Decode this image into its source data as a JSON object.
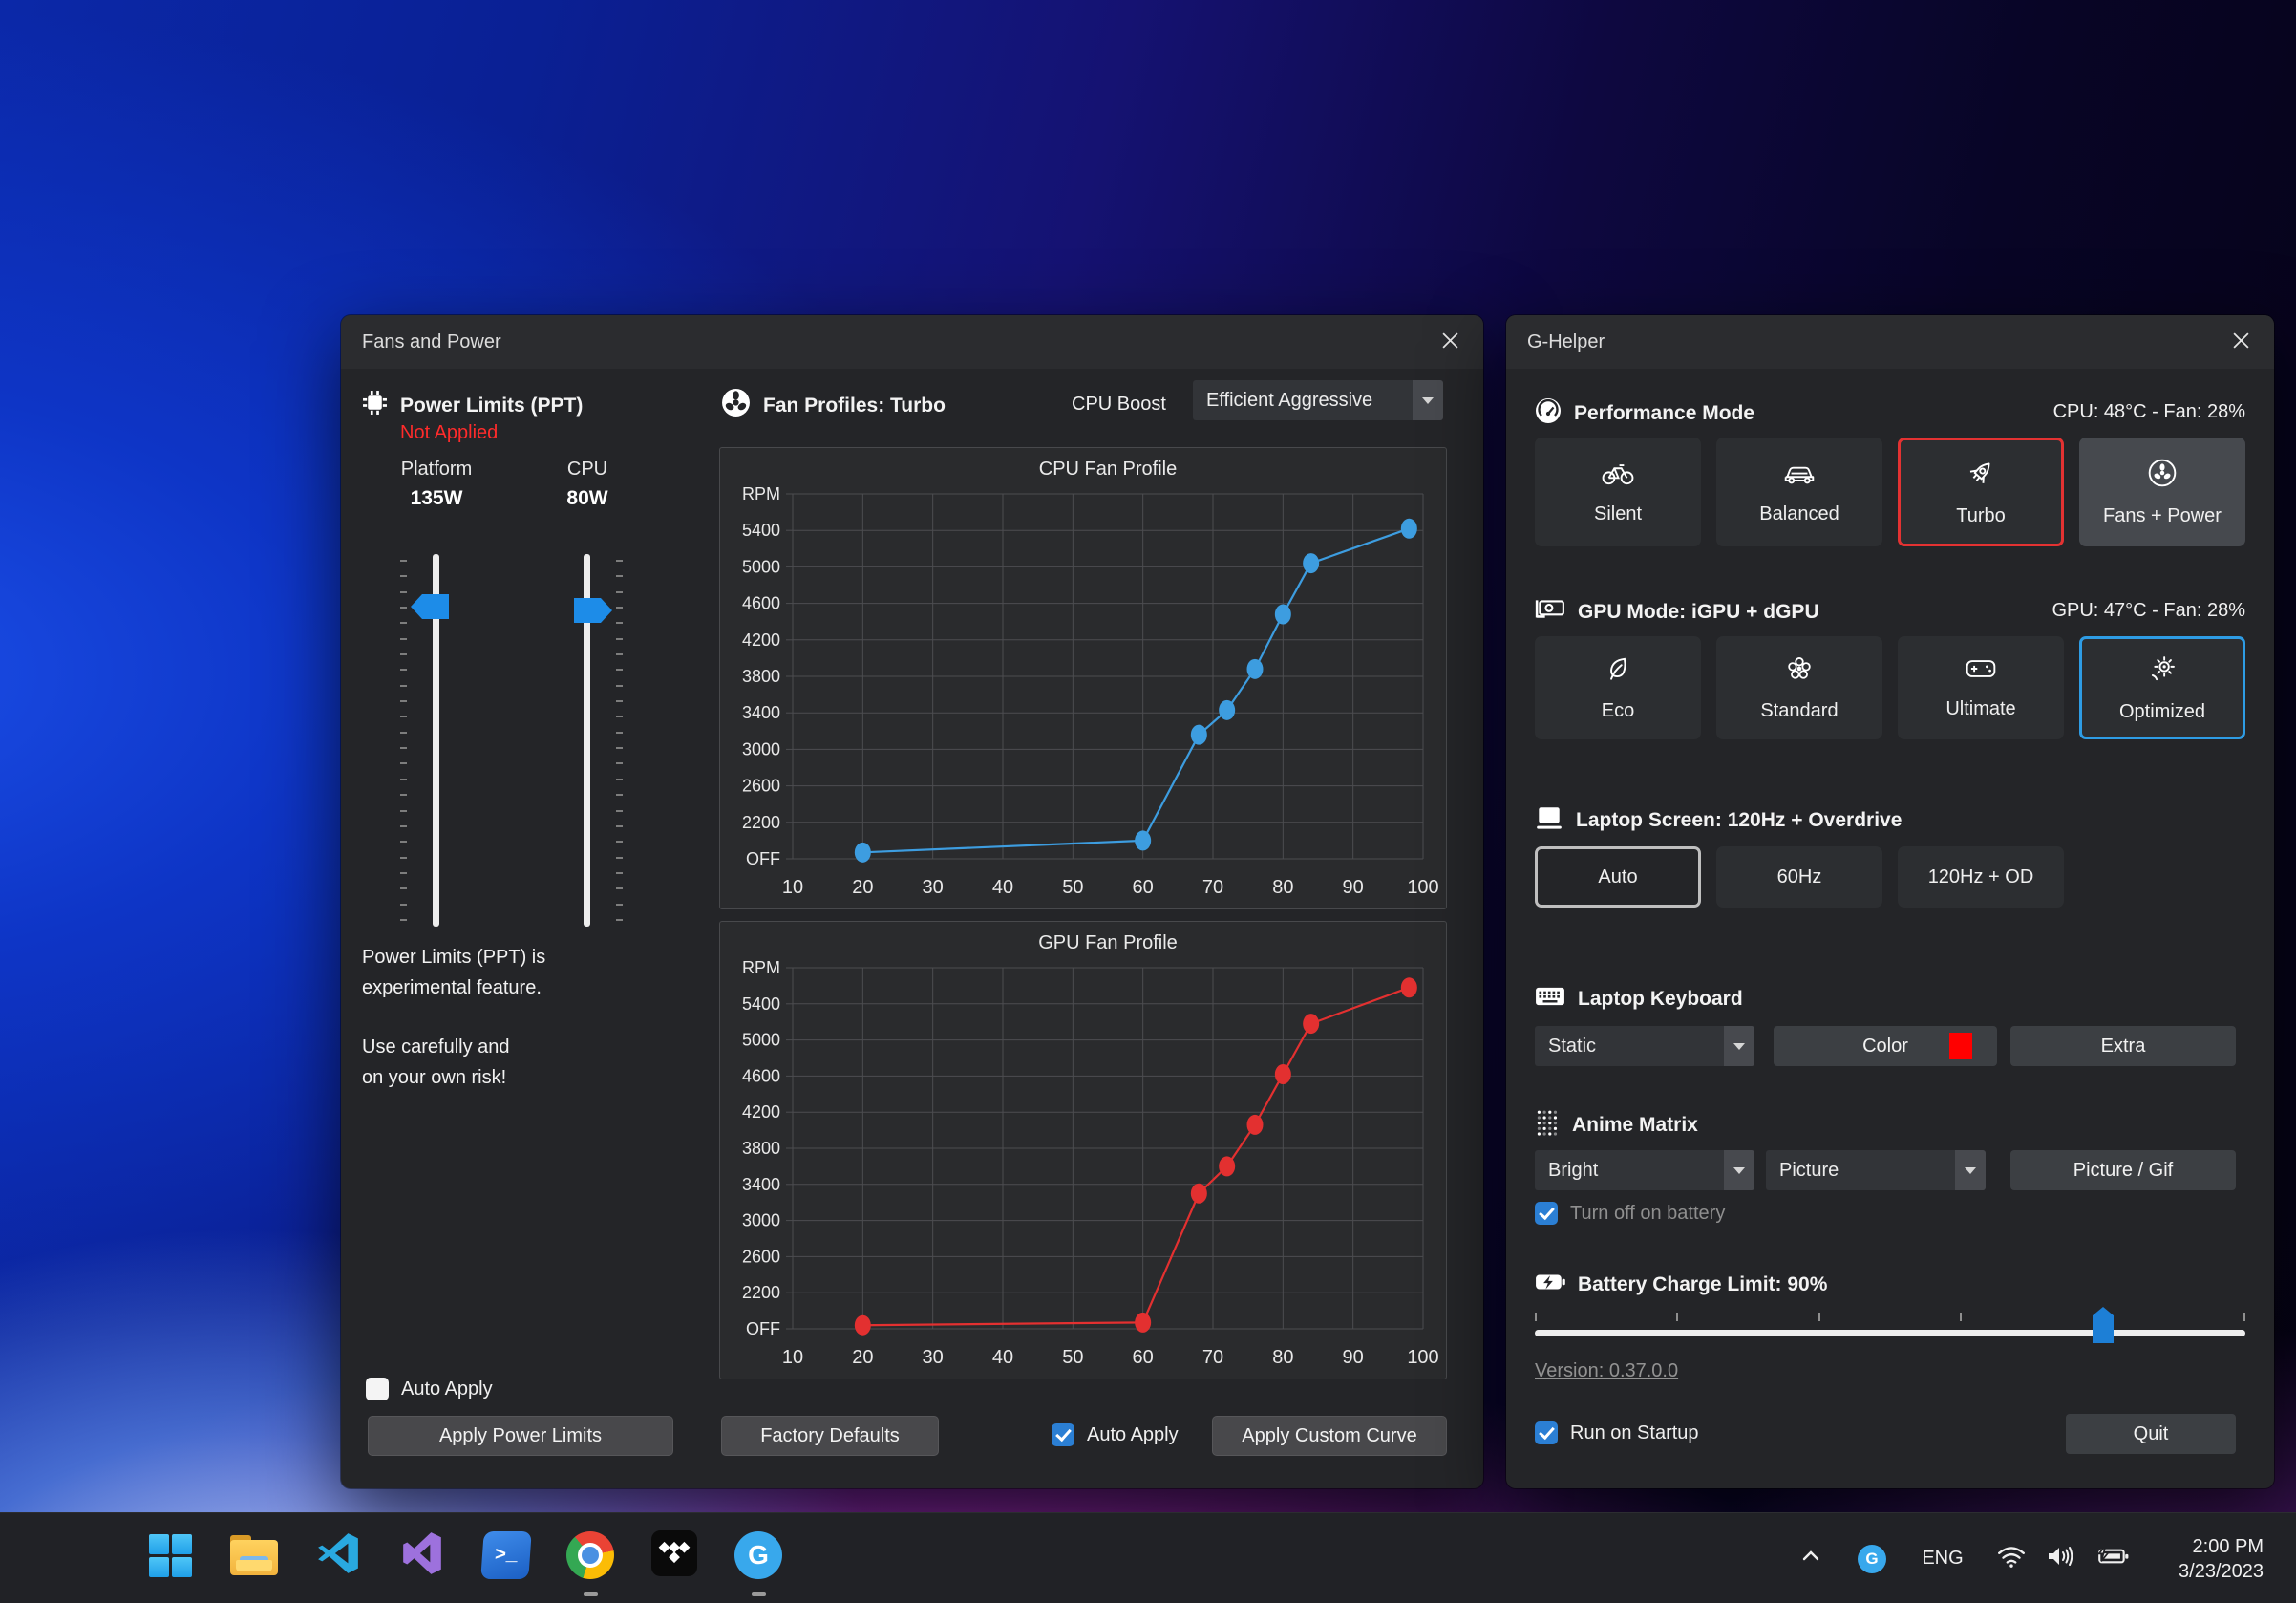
{
  "fans_window": {
    "title": "Fans and Power",
    "power_limits": {
      "title": "Power Limits (PPT)",
      "status": "Not Applied",
      "columns": [
        {
          "label": "Platform",
          "value": "135W"
        },
        {
          "label": "CPU",
          "value": "80W"
        }
      ],
      "note1": "Power Limits (PPT) is",
      "note2": "experimental feature.",
      "note3": "Use carefully and",
      "note4": "on your own risk!",
      "auto_apply": "Auto Apply",
      "apply_button": "Apply Power Limits"
    },
    "fan_profiles": {
      "title": "Fan Profiles: Turbo",
      "cpu_boost_label": "CPU Boost",
      "cpu_boost_value": "Efficient Aggressive",
      "factory_defaults": "Factory Defaults",
      "auto_apply": "Auto Apply",
      "apply_custom_curve": "Apply Custom Curve"
    }
  },
  "chart_data": [
    {
      "type": "line",
      "title": "CPU Fan Profile",
      "color": "#3d9de0",
      "x": [
        20,
        60,
        68,
        72,
        76,
        80,
        84,
        98
      ],
      "y": [
        1870,
        2000,
        3160,
        3430,
        3880,
        4480,
        5040,
        5420
      ],
      "xticks": [
        10,
        20,
        30,
        40,
        50,
        60,
        70,
        80,
        90,
        100
      ],
      "xlim": [
        10,
        100
      ],
      "grid": true,
      "ylabel": "RPM",
      "yaxis": [
        {
          "label": "RPM",
          "value": 5800
        },
        {
          "label": "5400",
          "value": 5400
        },
        {
          "label": "5000",
          "value": 5000
        },
        {
          "label": "4600",
          "value": 4600
        },
        {
          "label": "4200",
          "value": 4200
        },
        {
          "label": "3800",
          "value": 3800
        },
        {
          "label": "3400",
          "value": 3400
        },
        {
          "label": "3000",
          "value": 3000
        },
        {
          "label": "2600",
          "value": 2600
        },
        {
          "label": "2200",
          "value": 2200
        },
        {
          "label": "OFF",
          "value": 1800
        }
      ]
    },
    {
      "type": "line",
      "title": "GPU Fan Profile",
      "color": "#e33030",
      "x": [
        20,
        60,
        68,
        72,
        76,
        80,
        84,
        98
      ],
      "y": [
        1840,
        1870,
        3300,
        3600,
        4060,
        4620,
        5180,
        5580
      ],
      "xticks": [
        10,
        20,
        30,
        40,
        50,
        60,
        70,
        80,
        90,
        100
      ],
      "xlim": [
        10,
        100
      ],
      "grid": true,
      "ylabel": "RPM",
      "yaxis": [
        {
          "label": "RPM",
          "value": 5800
        },
        {
          "label": "5400",
          "value": 5400
        },
        {
          "label": "5000",
          "value": 5000
        },
        {
          "label": "4600",
          "value": 4600
        },
        {
          "label": "4200",
          "value": 4200
        },
        {
          "label": "3800",
          "value": 3800
        },
        {
          "label": "3400",
          "value": 3400
        },
        {
          "label": "3000",
          "value": 3000
        },
        {
          "label": "2600",
          "value": 2600
        },
        {
          "label": "2200",
          "value": 2200
        },
        {
          "label": "OFF",
          "value": 1800
        }
      ]
    }
  ],
  "ghelper_window": {
    "title": "G-Helper",
    "performance": {
      "title": "Performance Mode",
      "status": "CPU: 48°C -  Fan: 28%",
      "buttons": [
        {
          "label": "Silent"
        },
        {
          "label": "Balanced"
        },
        {
          "label": "Turbo"
        },
        {
          "label": "Fans + Power"
        }
      ]
    },
    "gpu_mode": {
      "title": "GPU Mode: iGPU + dGPU",
      "status": "GPU: 47°C -  Fan: 28%",
      "buttons": [
        {
          "label": "Eco"
        },
        {
          "label": "Standard"
        },
        {
          "label": "Ultimate"
        },
        {
          "label": "Optimized"
        }
      ]
    },
    "screen": {
      "title": "Laptop Screen: 120Hz + Overdrive",
      "buttons": [
        {
          "label": "Auto"
        },
        {
          "label": "60Hz"
        },
        {
          "label": "120Hz + OD"
        }
      ]
    },
    "keyboard": {
      "title": "Laptop Keyboard",
      "mode_value": "Static",
      "color_label": "Color",
      "swatch_color": "#ff0000",
      "extra_label": "Extra"
    },
    "anime_matrix": {
      "title": "Anime Matrix",
      "brightness_value": "Bright",
      "mode_value": "Picture",
      "button_label": "Picture / Gif",
      "checkbox_label": "Turn off on battery"
    },
    "battery": {
      "title": "Battery Charge Limit: 90%",
      "value": 90,
      "min": 50,
      "max": 100
    },
    "version": "Version: 0.37.0.0",
    "run_on_startup": "Run on Startup",
    "quit": "Quit"
  },
  "taskbar": {
    "terminal_glyph": ">_",
    "ghelper_glyph": "G",
    "tray": {
      "language": "ENG",
      "time": "2:00 PM",
      "date": "3/23/2023",
      "g_glyph": "G"
    }
  },
  "accent_colors": {
    "selection_blue": "#2e9ce4",
    "warning_red": "#e33232",
    "checkbox_blue": "#2b7fd4"
  }
}
